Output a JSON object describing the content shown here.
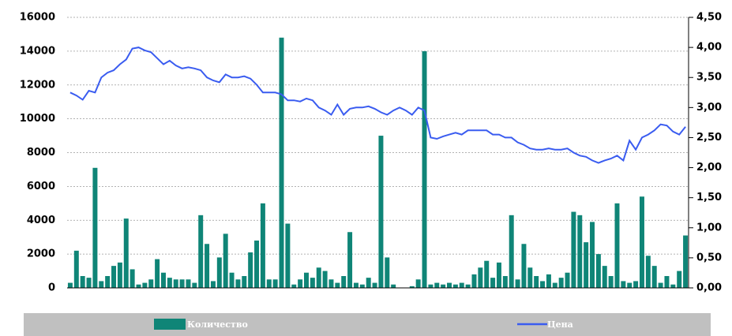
{
  "chart_data": {
    "type": "bar",
    "series": [
      {
        "name": "Количество",
        "type": "bar",
        "color": "#0f8577",
        "values": [
          300,
          2200,
          700,
          600,
          7100,
          400,
          700,
          1300,
          1500,
          4100,
          1100,
          200,
          300,
          500,
          1700,
          900,
          600,
          500,
          500,
          500,
          300,
          4300,
          2600,
          400,
          1800,
          3200,
          900,
          500,
          700,
          2100,
          2800,
          5000,
          500,
          500,
          14800,
          3800,
          200,
          500,
          900,
          600,
          1200,
          1000,
          500,
          300,
          700,
          3300,
          300,
          200,
          600,
          300,
          9000,
          1800,
          200,
          0,
          0,
          100,
          500,
          14000,
          200,
          300,
          200,
          300,
          200,
          300,
          200,
          800,
          1200,
          1600,
          600,
          1500,
          700,
          4300,
          500,
          2600,
          1200,
          700,
          400,
          800,
          300,
          600,
          900,
          4500,
          4300,
          2700,
          3900,
          2000,
          1300,
          700,
          5000,
          400,
          300,
          400,
          5400,
          1900,
          1300,
          300,
          700,
          200,
          1000,
          3100
        ]
      },
      {
        "name": "Цена",
        "type": "line",
        "axis": "y2",
        "color": "#3a5cf0",
        "values": [
          3.25,
          3.2,
          3.13,
          3.28,
          3.25,
          3.5,
          3.58,
          3.62,
          3.72,
          3.8,
          3.98,
          4.0,
          3.95,
          3.92,
          3.82,
          3.72,
          3.78,
          3.7,
          3.65,
          3.67,
          3.65,
          3.62,
          3.5,
          3.45,
          3.42,
          3.55,
          3.5,
          3.5,
          3.52,
          3.48,
          3.38,
          3.25,
          3.25,
          3.25,
          3.22,
          3.12,
          3.12,
          3.1,
          3.15,
          3.12,
          3.0,
          2.95,
          2.88,
          3.05,
          2.88,
          2.98,
          3.0,
          3.0,
          3.02,
          2.98,
          2.92,
          2.88,
          2.95,
          3.0,
          2.95,
          2.88,
          3.0,
          2.95,
          2.5,
          2.48,
          2.52,
          2.55,
          2.58,
          2.55,
          2.62,
          2.62,
          2.62,
          2.62,
          2.55,
          2.55,
          2.5,
          2.5,
          2.42,
          2.38,
          2.32,
          2.3,
          2.3,
          2.32,
          2.3,
          2.3,
          2.32,
          2.25,
          2.2,
          2.18,
          2.12,
          2.08,
          2.12,
          2.15,
          2.2,
          2.12,
          2.45,
          2.3,
          2.5,
          2.55,
          2.62,
          2.72,
          2.7,
          2.6,
          2.55,
          2.68
        ]
      }
    ],
    "ylim": [
      0,
      16000
    ],
    "yticks": [
      0,
      2000,
      4000,
      6000,
      8000,
      10000,
      12000,
      14000,
      16000
    ],
    "y2lim": [
      0,
      4.5
    ],
    "y2ticks": [
      {
        "value": 0,
        "label": "0,00"
      },
      {
        "value": 0.5,
        "label": "0,50"
      },
      {
        "value": 1,
        "label": "1,00"
      },
      {
        "value": 1.5,
        "label": "1,50"
      },
      {
        "value": 2,
        "label": "2,00"
      },
      {
        "value": 2.5,
        "label": "2,50"
      },
      {
        "value": 3,
        "label": "3,00"
      },
      {
        "value": 3.5,
        "label": "3,50"
      },
      {
        "value": 4,
        "label": "4,00"
      },
      {
        "value": 4.5,
        "label": "4,50"
      }
    ],
    "grid": true,
    "legend": "bottom"
  }
}
